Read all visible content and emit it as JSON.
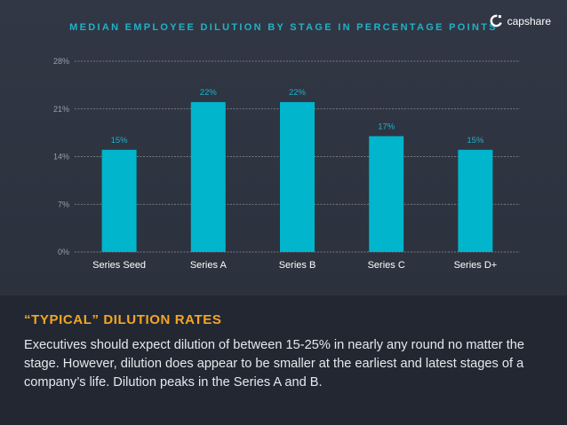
{
  "brand": {
    "name": "capshare",
    "logo_icon": "capshare-logo-icon"
  },
  "chart_data": {
    "type": "bar",
    "title": "MEDIAN EMPLOYEE DILUTION BY STAGE IN PERCENTAGE POINTS",
    "categories": [
      "Series Seed",
      "Series A",
      "Series B",
      "Series C",
      "Series D+"
    ],
    "values": [
      15,
      22,
      22,
      17,
      15
    ],
    "data_labels": [
      "15%",
      "22%",
      "22%",
      "17%",
      "15%"
    ],
    "yticks": [
      0,
      7,
      14,
      21,
      28
    ],
    "ytick_labels": [
      "0%",
      "7%",
      "14%",
      "21%",
      "28%"
    ],
    "ylim": [
      0,
      28
    ],
    "xlabel": "",
    "ylabel": "",
    "grid": true,
    "legend": "none",
    "colors": {
      "bar": "#00b5cc",
      "label": "#1fb2c9",
      "grid": "#8a8f99",
      "tick": "#9aa0aa",
      "category": "#ffffff"
    }
  },
  "summary": {
    "heading": "“TYPICAL” DILUTION RATES",
    "body": "Executives should expect dilution of between 15-25% in nearly any round no matter the stage.  However, dilution does appear to be smaller at the earliest and latest stages of a company’s life.  Dilution peaks in the Series A and B."
  }
}
